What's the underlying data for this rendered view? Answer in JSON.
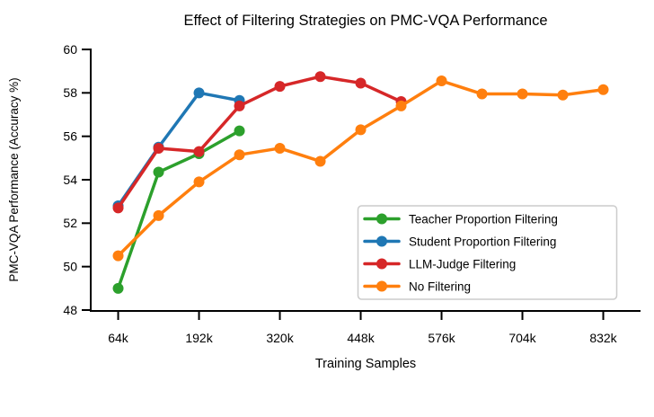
{
  "figure": {
    "background": "#ffffff"
  },
  "chart_data": {
    "type": "line",
    "title": "Effect of Filtering Strategies on PMC-VQA Performance",
    "xlabel": "Training Samples",
    "ylabel": "PMC-VQA Performance (Accuracy %)",
    "xlim_k": [
      22,
      891
    ],
    "ylim": [
      48,
      60
    ],
    "grid": false,
    "legend_position": "lower right",
    "legend_border_color": "#cccccc",
    "axis_color": "#000000",
    "yticks": [
      48,
      50,
      52,
      54,
      56,
      58,
      60
    ],
    "xticks": [
      {
        "value": 64,
        "label": "64k"
      },
      {
        "value": 192,
        "label": "192k"
      },
      {
        "value": 320,
        "label": "320k"
      },
      {
        "value": 448,
        "label": "448k"
      },
      {
        "value": 576,
        "label": "576k"
      },
      {
        "value": 704,
        "label": "704k"
      },
      {
        "value": 832,
        "label": "832k"
      }
    ],
    "series": [
      {
        "name": "Teacher Proportion Filtering",
        "color": "#2ca02c",
        "x": [
          64,
          128,
          192,
          256
        ],
        "y": [
          49.0,
          54.35,
          55.2,
          56.25
        ]
      },
      {
        "name": "Student Proportion Filtering",
        "color": "#1f77b4",
        "x": [
          64,
          128,
          192,
          256
        ],
        "y": [
          52.8,
          55.5,
          58.0,
          57.65
        ]
      },
      {
        "name": "LLM-Judge Filtering",
        "color": "#d62728",
        "x": [
          64,
          128,
          192,
          256,
          320,
          384,
          448,
          512
        ],
        "y": [
          52.7,
          55.45,
          55.3,
          57.4,
          58.3,
          58.75,
          58.45,
          57.6
        ]
      },
      {
        "name": "No Filtering",
        "color": "#ff7f0e",
        "x": [
          64,
          128,
          192,
          256,
          320,
          384,
          448,
          512,
          576,
          640,
          704,
          768,
          832
        ],
        "y": [
          50.5,
          52.35,
          53.9,
          55.15,
          55.45,
          54.85,
          56.3,
          57.4,
          58.55,
          57.95,
          57.95,
          57.9,
          58.15
        ]
      }
    ]
  }
}
